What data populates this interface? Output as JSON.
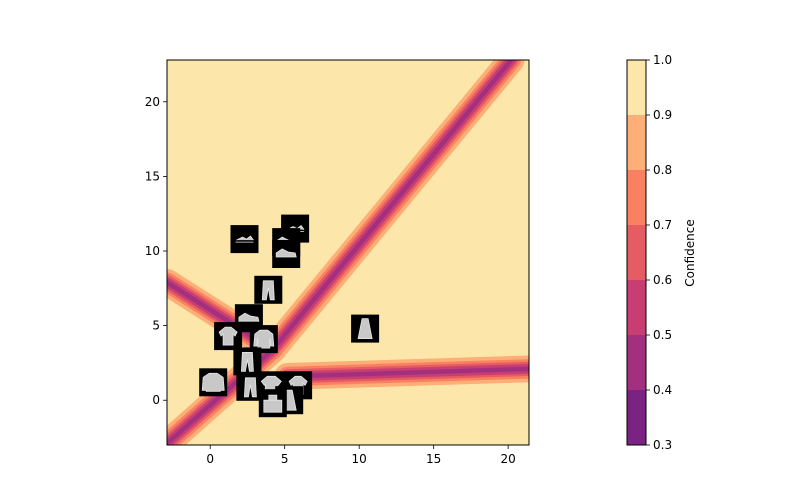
{
  "chart_data": {
    "type": "heatmap",
    "title": "",
    "xlabel": "",
    "ylabel": "",
    "xlim": [
      -2.9,
      21.4
    ],
    "ylim": [
      -3.0,
      22.8
    ],
    "x_ticks": [
      0,
      5,
      10,
      15,
      20
    ],
    "y_ticks": [
      0,
      5,
      10,
      15,
      20
    ],
    "grid": false,
    "decision_boundaries": [
      {
        "name": "boundary-diagonal-upper",
        "points": [
          [
            4.2,
            3.4
          ],
          [
            20.2,
            22.8
          ]
        ]
      },
      {
        "name": "boundary-diagonal-lower",
        "points": [
          [
            -2.9,
            -2.9
          ],
          [
            4.2,
            3.4
          ]
        ]
      },
      {
        "name": "boundary-upper-left",
        "points": [
          [
            -2.9,
            7.9
          ],
          [
            4.2,
            3.4
          ]
        ]
      },
      {
        "name": "boundary-lower-right",
        "points": [
          [
            5.2,
            1.6
          ],
          [
            21.4,
            2.1
          ]
        ]
      }
    ],
    "image_markers": [
      {
        "name": "sandal",
        "x": 2.3,
        "y": 10.8
      },
      {
        "name": "sandal",
        "x": 5.7,
        "y": 11.5
      },
      {
        "name": "sneaker",
        "x": 5.1,
        "y": 10.6
      },
      {
        "name": "sneaker",
        "x": 5.1,
        "y": 9.8
      },
      {
        "name": "trouser",
        "x": 3.9,
        "y": 7.4
      },
      {
        "name": "sneaker",
        "x": 2.6,
        "y": 5.5
      },
      {
        "name": "dress",
        "x": 10.4,
        "y": 4.8
      },
      {
        "name": "shirt",
        "x": 1.2,
        "y": 4.3
      },
      {
        "name": "pullover",
        "x": 3.6,
        "y": 4.1
      },
      {
        "name": "trouser",
        "x": 2.5,
        "y": 2.6
      },
      {
        "name": "coat",
        "x": 0.2,
        "y": 1.2
      },
      {
        "name": "trouser",
        "x": 2.7,
        "y": 0.9
      },
      {
        "name": "tshirt",
        "x": 4.1,
        "y": 1.0
      },
      {
        "name": "shirt",
        "x": 5.9,
        "y": 1.0
      },
      {
        "name": "dress",
        "x": 5.3,
        "y": 0.0
      },
      {
        "name": "bag",
        "x": 4.2,
        "y": -0.2
      }
    ]
  },
  "colorbar": {
    "label": "Confidence",
    "levels": [
      0.3,
      0.4,
      0.5,
      0.6,
      0.7,
      0.8,
      0.9,
      1.0
    ],
    "tick_labels": [
      "0.3",
      "0.4",
      "0.5",
      "0.6",
      "0.7",
      "0.8",
      "0.9",
      "1.0"
    ],
    "colors": [
      "#7b2382",
      "#a3307e",
      "#c83e73",
      "#e55c63",
      "#f98161",
      "#feae77",
      "#fce6a9"
    ]
  }
}
